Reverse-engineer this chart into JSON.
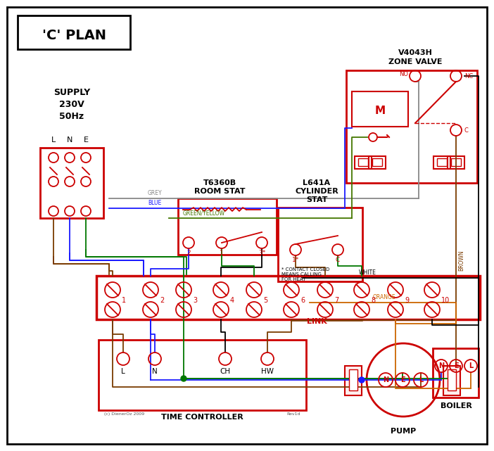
{
  "title": "'C' PLAN",
  "bg_color": "#ffffff",
  "red": "#cc0000",
  "blue": "#1a1aff",
  "green": "#007700",
  "grey": "#888888",
  "brown": "#7a3b00",
  "orange": "#cc6600",
  "black": "#000000",
  "gyellow": "#447700",
  "terminal_labels": [
    "1",
    "2",
    "3",
    "4",
    "5",
    "6",
    "7",
    "8",
    "9",
    "10"
  ],
  "time_controller_label": "TIME CONTROLLER",
  "pump_label": "PUMP",
  "boiler_label": "BOILER"
}
